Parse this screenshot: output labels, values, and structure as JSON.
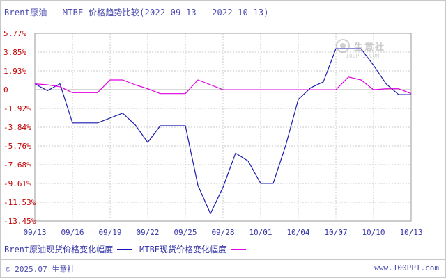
{
  "title": "Brent原油 - MTBE 价格趋势比较(2022-09-13 - 2022-10-13)",
  "colors": {
    "brent": "#1a1ab0",
    "mtbe": "#e000e0",
    "grid": "#c8c8c8",
    "axis_text": "#c00000",
    "x_text": "#3535a8"
  },
  "watermark": {
    "name": "生意社",
    "url": "100PPI.COM",
    "icon": "shengyishe-logo-icon"
  },
  "legend": {
    "brent_label": "Brent原油现货价格变化幅度",
    "mtbe_label": "MTBE现货价格变化幅度"
  },
  "footer": {
    "left": "© 2025.07 生意社",
    "right": "www.100PPI.com"
  },
  "chart_data": {
    "type": "line",
    "title": "Brent原油 - MTBE 价格趋势比较(2022-09-13 - 2022-10-13)",
    "xlabel": "",
    "ylabel": "",
    "x": [
      "09/13",
      "09/14",
      "09/15",
      "09/16",
      "09/17",
      "09/18",
      "09/19",
      "09/20",
      "09/21",
      "09/22",
      "09/23",
      "09/24",
      "09/25",
      "09/26",
      "09/27",
      "09/28",
      "09/29",
      "09/30",
      "10/01",
      "10/02",
      "10/03",
      "10/04",
      "10/05",
      "10/06",
      "10/07",
      "10/08",
      "10/09",
      "10/10",
      "10/11",
      "10/12",
      "10/13"
    ],
    "x_tick_labels": [
      "09/13",
      "09/16",
      "09/19",
      "09/22",
      "09/25",
      "09/28",
      "10/01",
      "10/04",
      "10/07",
      "10/10",
      "10/13"
    ],
    "y_tick_labels": [
      "5.77%",
      "3.85%",
      "1.93%",
      "0",
      "-1.92%",
      "-3.84%",
      "-5.76%",
      "-7.68%",
      "-9.61%",
      "-11.53%",
      "-13.45%"
    ],
    "ylim": [
      -13.45,
      5.77
    ],
    "grid": true,
    "legend_position": "bottom-left",
    "series": [
      {
        "name": "Brent原油现货价格变化幅度",
        "values": [
          0.6,
          -0.1,
          0.6,
          -3.4,
          -3.4,
          -3.4,
          -2.9,
          -2.4,
          -3.6,
          -5.4,
          -3.7,
          -3.7,
          -3.7,
          -9.8,
          -12.7,
          -10.0,
          -6.5,
          -7.3,
          -9.6,
          -9.6,
          -5.7,
          -1.0,
          0.2,
          0.8,
          4.2,
          4.2,
          4.2,
          2.5,
          0.6,
          -0.5,
          -0.5
        ]
      },
      {
        "name": "MTBE现货价格变化幅度",
        "values": [
          0.6,
          0.5,
          0.3,
          -0.3,
          -0.3,
          -0.3,
          1.0,
          1.0,
          0.5,
          0.1,
          -0.4,
          -0.4,
          -0.4,
          1.0,
          0.5,
          0.0,
          0.0,
          0.0,
          0.0,
          0.0,
          0.0,
          0.0,
          0.0,
          0.0,
          0.0,
          1.3,
          1.0,
          0.0,
          0.1,
          0.1,
          -0.4
        ]
      }
    ]
  }
}
